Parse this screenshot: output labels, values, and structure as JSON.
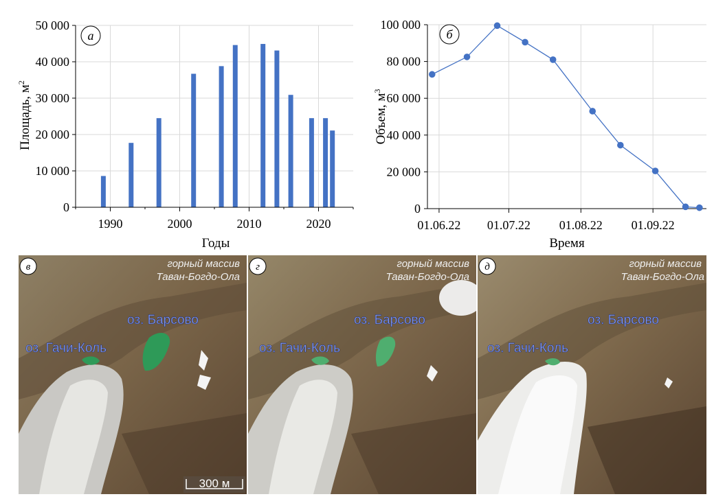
{
  "chart_data": [
    {
      "type": "bar",
      "panel_label": "а",
      "title": "",
      "xlabel": "Годы",
      "ylabel": "Площадь, м",
      "ylabel_sup": "2",
      "x": [
        1989,
        1993,
        1997,
        2002,
        2006,
        2008,
        2012,
        2014,
        2016,
        2019,
        2021,
        2022
      ],
      "values": [
        8600,
        17700,
        24500,
        36700,
        38800,
        44600,
        44900,
        43100,
        30900,
        24500,
        24500,
        21100
      ],
      "xlim": [
        1985,
        2025
      ],
      "ylim": [
        0,
        50000
      ],
      "xticks": [
        1990,
        2000,
        2010,
        2020
      ],
      "xtick_labels": [
        "1990",
        "2000",
        "2010",
        "2020"
      ],
      "yticks": [
        0,
        10000,
        20000,
        30000,
        40000,
        50000
      ],
      "ytick_labels": [
        "0",
        "10 000",
        "20 000",
        "30 000",
        "40 000",
        "50 000"
      ],
      "grid": true,
      "color": "#4472c4"
    },
    {
      "type": "line",
      "panel_label": "б",
      "title": "",
      "xlabel": "Время",
      "ylabel": "Объем, м",
      "ylabel_sup": "3",
      "x": [
        "29.05.22",
        "13.06.22",
        "26.06.22",
        "08.07.22",
        "20.07.22",
        "06.08.22",
        "18.08.22",
        "02.09.22",
        "15.09.22",
        "21.09.22"
      ],
      "x_days": [
        -3,
        12,
        25,
        37,
        49,
        66,
        78,
        93,
        106,
        112
      ],
      "values": [
        73000,
        82500,
        99500,
        90500,
        81000,
        53000,
        34500,
        20500,
        1000,
        500
      ],
      "xlim": [
        -5,
        115
      ],
      "ylim": [
        0,
        100000
      ],
      "xticks": [
        0,
        30,
        61,
        92
      ],
      "xtick_labels": [
        "01.06.22",
        "01.07.22",
        "01.08.22",
        "01.09.22"
      ],
      "yticks": [
        0,
        20000,
        40000,
        60000,
        80000,
        100000
      ],
      "ytick_labels": [
        "0",
        "20 000",
        "40 000",
        "60 000",
        "80 000",
        "100 000"
      ],
      "grid": true,
      "color": "#4472c4"
    }
  ],
  "images": [
    {
      "label": "в",
      "massif": [
        "горный массив",
        "Таван-Богдо-Ола"
      ],
      "lake1": "оз. Гачи-Коль",
      "lake2": "оз. Барсово",
      "scale": "300 м"
    },
    {
      "label": "г",
      "massif": [
        "горный массив",
        "Таван-Богдо-Ола"
      ],
      "lake1": "оз. Гачи-Коль",
      "lake2": "оз. Барсово"
    },
    {
      "label": "д",
      "massif": [
        "горный массив",
        "Таван-Богдо-Ола"
      ],
      "lake1": "оз. Гачи-Коль",
      "lake2": "оз. Барсово"
    }
  ],
  "colors": {
    "bar": "#4472c4",
    "line": "#4472c4",
    "lake": "#2e9a58",
    "annotation": "#8aa2ff"
  }
}
